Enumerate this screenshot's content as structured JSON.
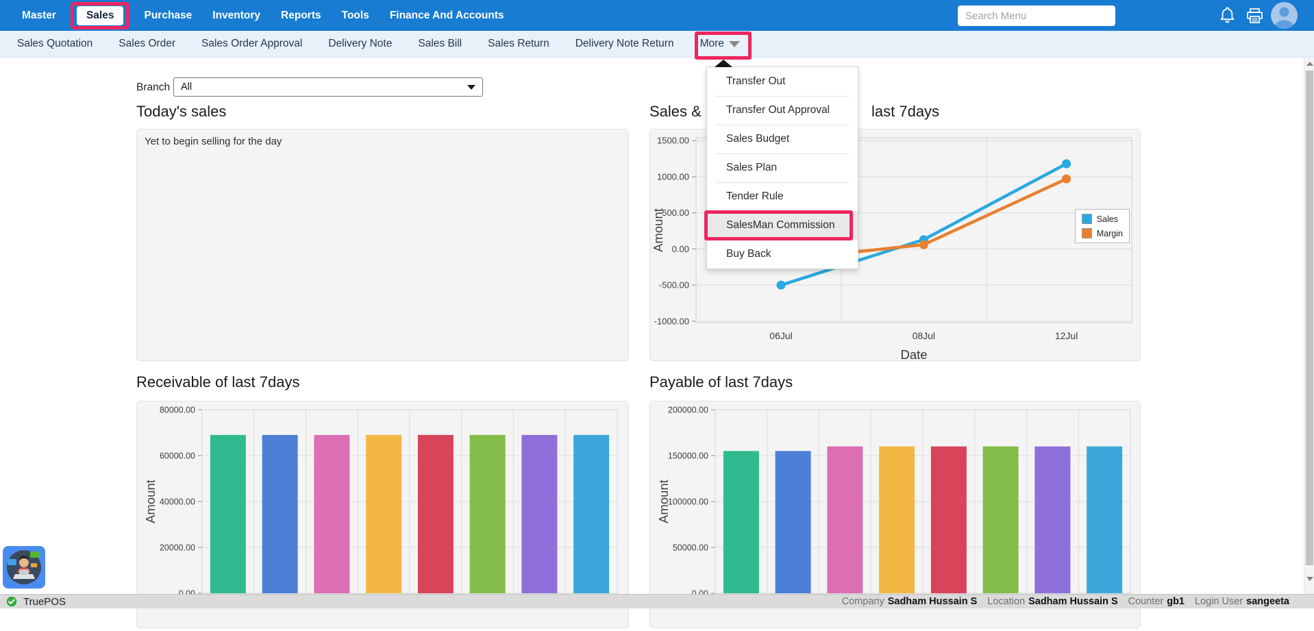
{
  "topnav": {
    "items": [
      {
        "label": "Master",
        "active": false,
        "annotated": false
      },
      {
        "label": "Sales",
        "active": true,
        "annotated": true
      },
      {
        "label": "Purchase",
        "active": false,
        "annotated": false
      },
      {
        "label": "Inventory",
        "active": false,
        "annotated": false
      },
      {
        "label": "Reports",
        "active": false,
        "annotated": false
      },
      {
        "label": "Tools",
        "active": false,
        "annotated": false
      },
      {
        "label": "Finance And Accounts",
        "active": false,
        "annotated": false
      }
    ],
    "search": {
      "placeholder": "Search Menu"
    }
  },
  "subnav": {
    "items": [
      {
        "label": "Sales Quotation"
      },
      {
        "label": "Sales Order"
      },
      {
        "label": "Sales Order Approval"
      },
      {
        "label": "Delivery Note"
      },
      {
        "label": "Sales Bill"
      },
      {
        "label": "Sales Return"
      },
      {
        "label": "Delivery Note Return"
      }
    ],
    "more": {
      "label": "More",
      "annotated": true,
      "open": true
    }
  },
  "more_menu": {
    "items": [
      {
        "label": "Transfer Out",
        "highlighted": false,
        "annotated": false
      },
      {
        "label": "Transfer Out Approval",
        "highlighted": false,
        "annotated": false
      },
      {
        "label": "Sales Budget",
        "highlighted": false,
        "annotated": false
      },
      {
        "label": "Sales Plan",
        "highlighted": false,
        "annotated": false
      },
      {
        "label": "Tender Rule",
        "highlighted": false,
        "annotated": false
      },
      {
        "label": "SalesMan Commission",
        "highlighted": true,
        "annotated": true
      },
      {
        "label": "Buy Back",
        "highlighted": false,
        "annotated": false
      }
    ]
  },
  "filters": {
    "branch_label": "Branch",
    "branch_value": "All"
  },
  "panels": {
    "today_sales": {
      "title": "Today's sales",
      "message": "Yet to begin selling for the day"
    },
    "sales_margin": {
      "title": "Sales & Margin of last 7days",
      "visible_tail": "last 7days"
    },
    "receivable": {
      "title": "Receivable of last 7days"
    },
    "payable": {
      "title": "Payable of last 7days"
    }
  },
  "chart_data": [
    {
      "type": "line",
      "title": "Sales & Margin of last 7days",
      "x": [
        "06Jul",
        "08Jul",
        "12Jul"
      ],
      "xlabel": "Date",
      "ylabel": "Amount",
      "ylim": [
        -1020,
        1540
      ],
      "yticks": [
        1500,
        1000,
        500,
        0,
        -500,
        -1000
      ],
      "ytick_labels": [
        "1500.00",
        "1000.00",
        "500.00",
        "0.00",
        "-500.00",
        "-1000.00"
      ],
      "grid": true,
      "legend_position": "right",
      "series": [
        {
          "name": "Sales",
          "color": "#29a9e1",
          "values": [
            -500,
            130,
            1180
          ]
        },
        {
          "name": "Margin",
          "color": "#e8802f",
          "values": [
            -150,
            60,
            970
          ]
        }
      ]
    },
    {
      "type": "bar",
      "title": "Receivable of last 7days",
      "ylabel": "Amount",
      "ylim": [
        0,
        80000
      ],
      "yticks": [
        80000,
        60000,
        40000,
        20000,
        0
      ],
      "ytick_labels": [
        "80000.00",
        "60000.00",
        "40000.00",
        "20000.00",
        "0.00"
      ],
      "grid": true,
      "values": [
        69000,
        69000,
        69000,
        69000,
        69000,
        69000,
        69000,
        69000
      ],
      "colors": [
        "#2fbb8f",
        "#4d7fd6",
        "#dc6eb4",
        "#f2b843",
        "#d8445a",
        "#84bc49",
        "#8f6fd9",
        "#3da7db"
      ]
    },
    {
      "type": "bar",
      "title": "Payable of last 7days",
      "ylabel": "Amount",
      "ylim": [
        0,
        200000
      ],
      "yticks": [
        200000,
        150000,
        100000,
        50000,
        0
      ],
      "ytick_labels": [
        "200000.00",
        "150000.00",
        "100000.00",
        "50000.00",
        "0.00"
      ],
      "grid": true,
      "values": [
        155000,
        155000,
        160000,
        160000,
        160000,
        160000,
        160000,
        160000
      ],
      "colors": [
        "#2fbb8f",
        "#4d7fd6",
        "#dc6eb4",
        "#f2b843",
        "#d8445a",
        "#84bc49",
        "#8f6fd9",
        "#3da7db"
      ]
    }
  ],
  "statusbar": {
    "brand": "TruePOS",
    "fields": [
      {
        "label": "Company",
        "value": "Sadham Hussain S"
      },
      {
        "label": "Location",
        "value": "Sadham Hussain S"
      },
      {
        "label": "Counter",
        "value": "gb1"
      },
      {
        "label": "Login User",
        "value": "sangeeta"
      }
    ]
  },
  "colors": {
    "topnav_bg": "#177cd2",
    "subnav_bg": "#e8f1fa",
    "annotation": "#ee2660",
    "panel_bg": "#f4f4f4",
    "sales_line": "#29a9e1",
    "margin_line": "#e8802f"
  }
}
